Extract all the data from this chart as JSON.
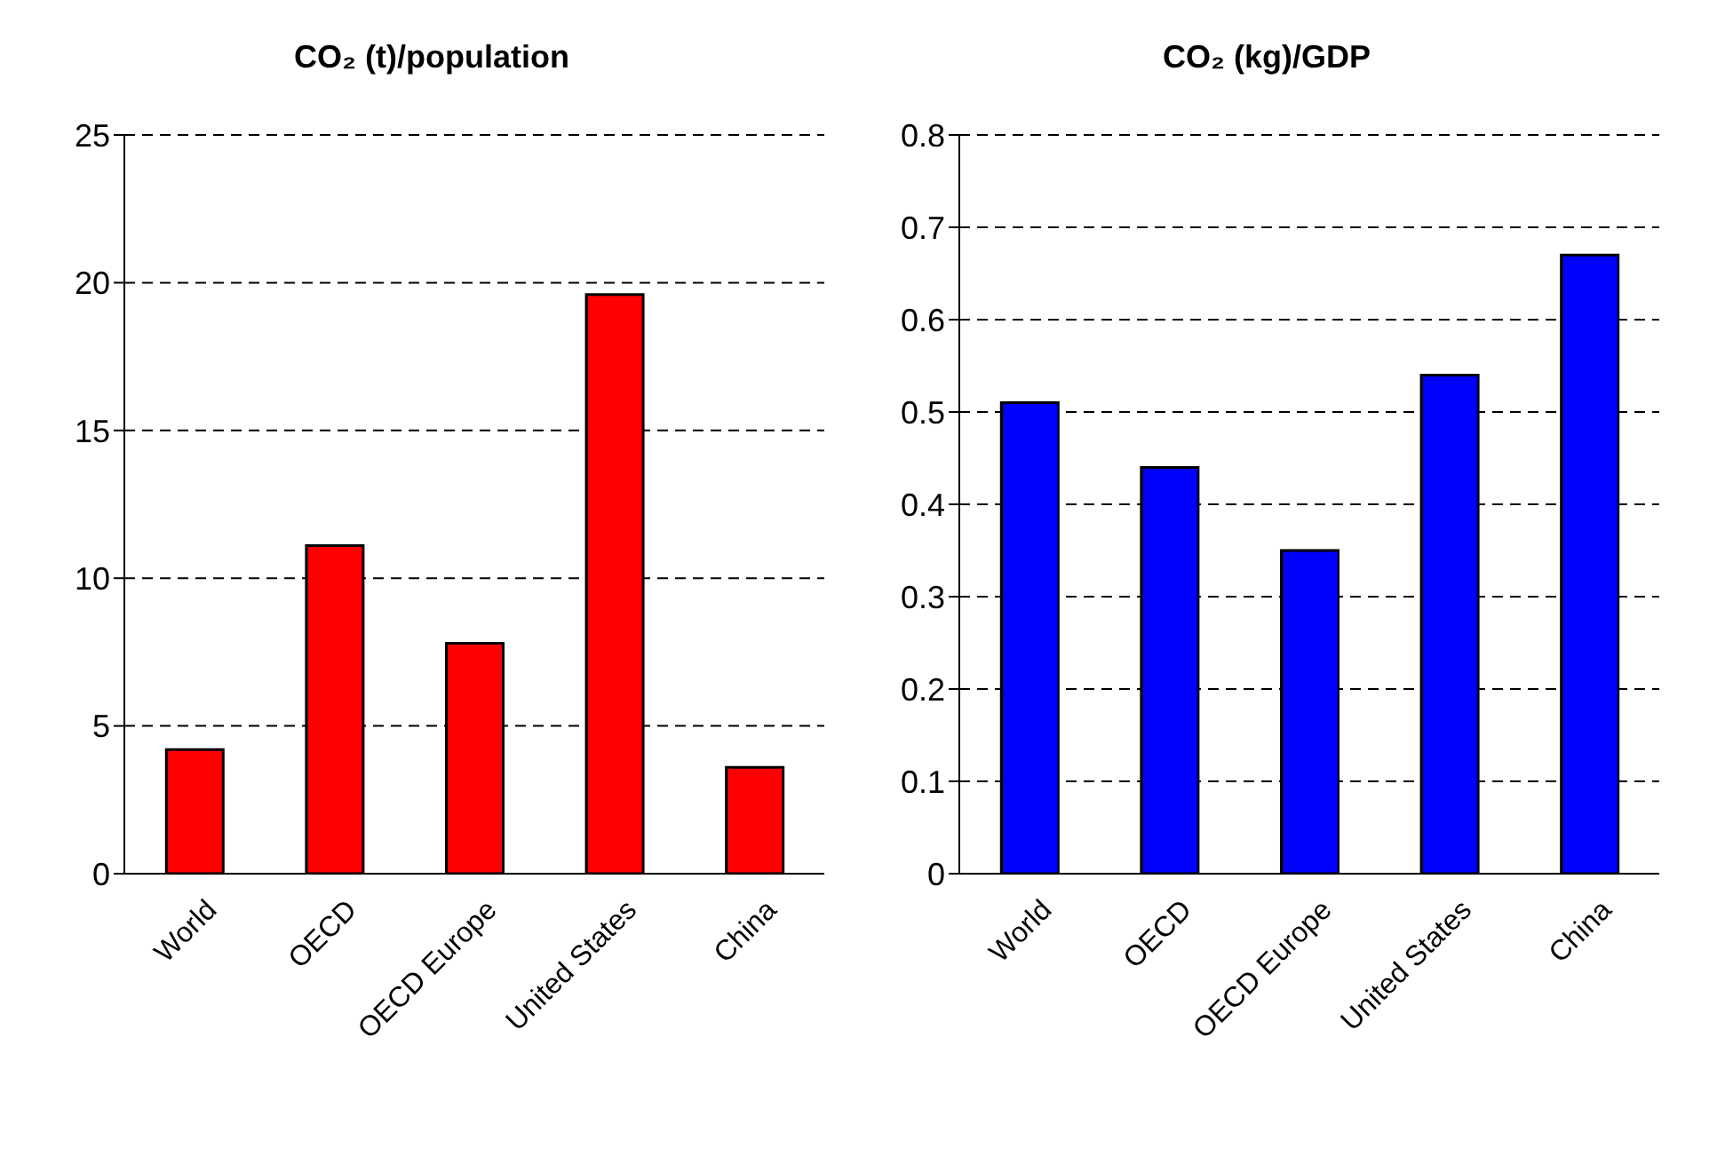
{
  "chart_data": [
    {
      "type": "bar",
      "title": "CO₂ (t)/population",
      "categories": [
        "World",
        "OECD",
        "OECD Europe",
        "United States",
        "China"
      ],
      "values": [
        4.2,
        11.1,
        7.8,
        19.6,
        3.6
      ],
      "color": "#ff0000",
      "ylim": [
        0,
        25
      ],
      "yticks": [
        0,
        5,
        10,
        15,
        20,
        25
      ],
      "grid": "y"
    },
    {
      "type": "bar",
      "title": "CO₂ (kg)/GDP",
      "categories": [
        "World",
        "OECD",
        "OECD Europe",
        "United States",
        "China"
      ],
      "values": [
        0.51,
        0.44,
        0.35,
        0.54,
        0.67
      ],
      "color": "#0000ff",
      "ylim": [
        0,
        0.8
      ],
      "yticks": [
        0,
        0.1,
        0.2,
        0.3,
        0.4,
        0.5,
        0.6,
        0.7,
        0.8
      ],
      "grid": "y"
    }
  ]
}
